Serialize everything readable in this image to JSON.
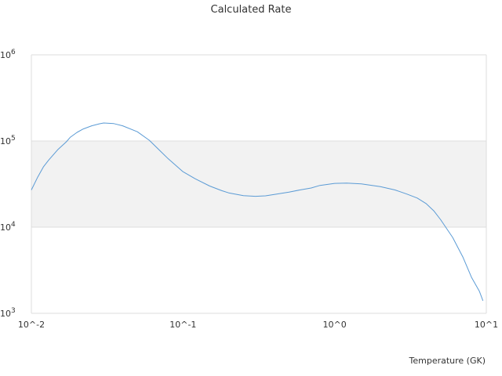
{
  "chart_data": {
    "type": "line",
    "title": "Calculated Rate",
    "xlabel": "Temperature (GK)",
    "ylabel": "",
    "xscale": "log",
    "yscale": "log",
    "xlim": [
      0.01,
      10
    ],
    "ylim": [
      1000,
      1000000
    ],
    "x_ticks": [
      {
        "value": 0.01,
        "label": "10^-2"
      },
      {
        "value": 0.1,
        "label": "10^-1"
      },
      {
        "value": 1,
        "label": "10^0"
      },
      {
        "value": 10,
        "label": "10^1"
      }
    ],
    "y_ticks": [
      {
        "value": 1000,
        "base": "10",
        "exp": "3"
      },
      {
        "value": 10000,
        "base": "10",
        "exp": "4"
      },
      {
        "value": 100000,
        "base": "10",
        "exp": "5"
      },
      {
        "value": 1000000,
        "base": "10",
        "exp": "6"
      }
    ],
    "y_label_superscript": true,
    "alternating_bands": true,
    "band_color": "#f2f2f2",
    "grid_color": "#dddddd",
    "line_color": "#5b9bd5",
    "series": [
      {
        "x": [
          0.01,
          0.011,
          0.012,
          0.013,
          0.015,
          0.017,
          0.018,
          0.02,
          0.022,
          0.025,
          0.028,
          0.03,
          0.035,
          0.04,
          0.05,
          0.06,
          0.07,
          0.08,
          0.1,
          0.12,
          0.15,
          0.18,
          0.2,
          0.25,
          0.3,
          0.35,
          0.4,
          0.5,
          0.6,
          0.7,
          0.8,
          1,
          1.2,
          1.5,
          2,
          2.5,
          3,
          3.5,
          4,
          4.5,
          5,
          6,
          7,
          8,
          9,
          9.5
        ],
        "y": [
          27000,
          38000,
          50000,
          60000,
          80000,
          98000,
          110000,
          126000,
          138000,
          150000,
          158000,
          162000,
          159000,
          150000,
          128000,
          102000,
          78000,
          62000,
          44000,
          36500,
          30000,
          26500,
          25000,
          23200,
          22800,
          23100,
          24000,
          25500,
          27200,
          28500,
          30500,
          32200,
          32500,
          31800,
          29500,
          27000,
          24200,
          21800,
          18800,
          15500,
          12200,
          7600,
          4500,
          2600,
          1800,
          1400
        ]
      }
    ]
  }
}
